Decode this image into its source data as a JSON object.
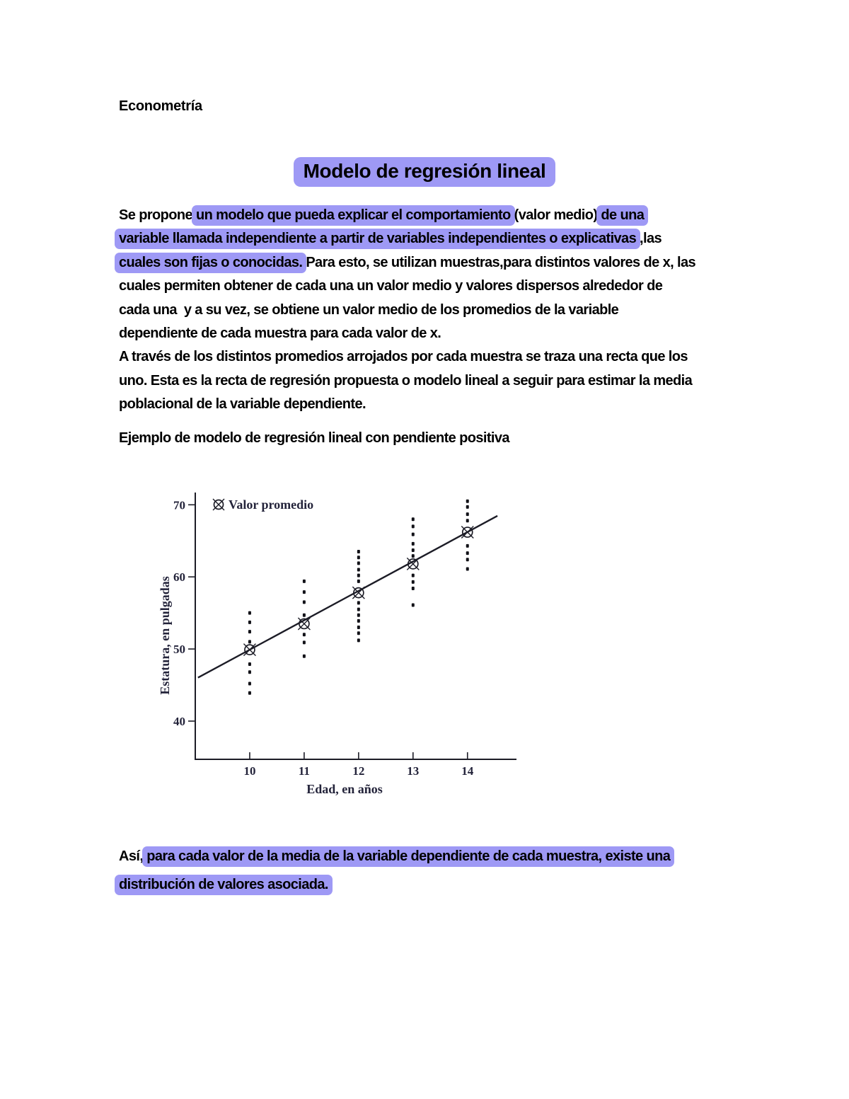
{
  "colors": {
    "highlight": "#9e99f5",
    "text": "#000000",
    "chart_ink": "#1c1c26",
    "chart_text": "#23233a"
  },
  "document": {
    "course_label": "Econometría",
    "title": "Modelo de regresión lineal",
    "intro_lines": [
      [
        {
          "t": "Se propone ",
          "h": false
        },
        {
          "t": "un modelo que pueda explicar el comportamiento",
          "h": true
        },
        {
          "t": " (valor medio) ",
          "h": false
        },
        {
          "t": "de una",
          "h": true
        }
      ],
      [
        {
          "t": "variable llamada independiente a partir de variables independientes o explicativas",
          "h": true
        },
        {
          "t": " ,las",
          "h": false
        }
      ],
      [
        {
          "t": "cuales son fijas o conocidas.",
          "h": true
        },
        {
          "t": " Para esto, se utilizan muestras,para distintos valores de x, las",
          "h": false
        }
      ],
      [
        {
          "t": "cuales permiten obtener de cada una un valor medio y valores dispersos alrededor de",
          "h": false
        }
      ],
      [
        {
          "t": "cada una  y a su vez, se obtiene un valor medio de los promedios de la variable",
          "h": false
        }
      ],
      [
        {
          "t": "dependiente de cada muestra para cada valor de x.",
          "h": false
        }
      ],
      [
        {
          "t": "A través de los distintos promedios arrojados por cada muestra se traza una recta que los",
          "h": false
        }
      ],
      [
        {
          "t": "uno. Esta es la recta de regresión propuesta o modelo lineal a seguir para estimar la media",
          "h": false
        }
      ],
      [
        {
          "t": "poblacional de la variable dependiente.",
          "h": false
        }
      ]
    ],
    "example_heading": "Ejemplo de modelo de regresión lineal con pendiente positiva",
    "closing_lines": [
      [
        {
          "t": "Así, ",
          "h": false
        },
        {
          "t": "para cada valor de la media de la variable dependiente de cada muestra, existe una",
          "h": true
        }
      ],
      [
        {
          "t": "distribución de valores asociada.",
          "h": true
        }
      ]
    ]
  },
  "chart_data": {
    "type": "scatter",
    "title": "",
    "xlabel": "Edad, en años",
    "ylabel": "Estatura, en pulgadas",
    "legend": {
      "marker": "circled-x-icon",
      "label": "Valor promedio",
      "position": "top-left-inside"
    },
    "xticks": [
      10,
      11,
      12,
      13,
      14
    ],
    "yticks": [
      40,
      50,
      60,
      70
    ],
    "xlim": [
      9,
      14.9
    ],
    "ylim": [
      34.7,
      71.7
    ],
    "grid": false,
    "groups": [
      {
        "x": 10,
        "mean": 49.9,
        "dots": [
          55.0,
          53.7,
          52.4,
          51.0,
          47.9,
          46.8,
          45.2,
          43.9
        ]
      },
      {
        "x": 11,
        "mean": 53.5,
        "dots": [
          59.4,
          57.9,
          56.5,
          54.7,
          52.0,
          50.9,
          49.0
        ]
      },
      {
        "x": 12,
        "mean": 57.8,
        "dots": [
          63.5,
          62.7,
          61.9,
          61.0,
          60.2,
          59.4,
          56.4,
          55.5,
          54.7,
          53.9,
          53.0,
          52.2,
          51.2
        ]
      },
      {
        "x": 13,
        "mean": 61.8,
        "dots": [
          68.0,
          67.0,
          65.9,
          64.6,
          63.7,
          62.9,
          60.2,
          59.3,
          58.4,
          56.1
        ]
      },
      {
        "x": 14,
        "mean": 66.2,
        "dots": [
          70.5,
          69.7,
          68.7,
          67.8,
          64.3,
          63.3,
          62.4,
          61.1
        ]
      }
    ],
    "regression_line": {
      "slope": 4.08,
      "intercept": 9.1,
      "x_start": 9.05,
      "x_end": 14.55
    }
  }
}
